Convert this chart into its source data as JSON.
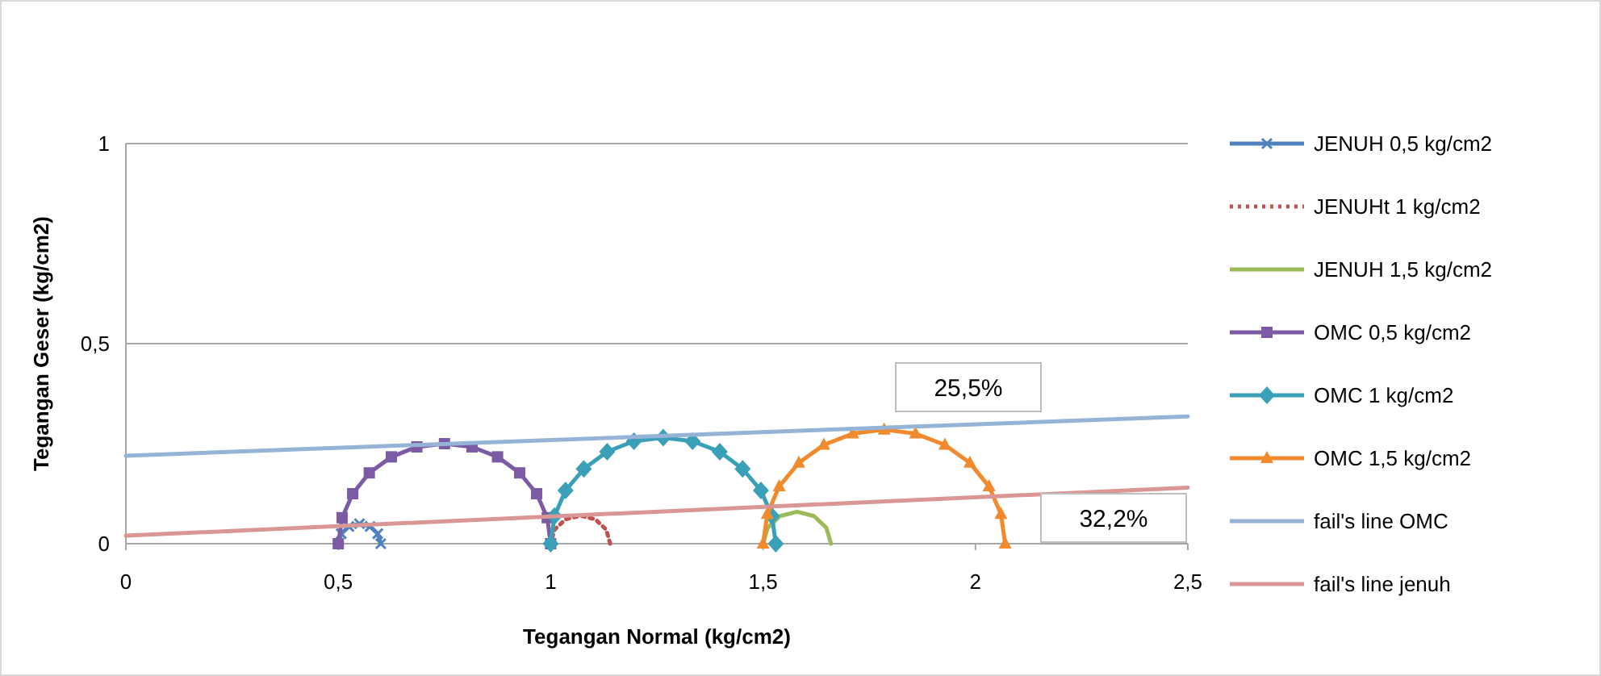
{
  "chart_data": {
    "type": "line",
    "xlabel": "Tegangan Normal (kg/cm2)",
    "ylabel": "Tegangan Geser (kg/cm2)",
    "xlim": [
      0,
      2.5
    ],
    "ylim": [
      0,
      1
    ],
    "xticks": [
      0,
      {
        "value": 0.5,
        "label": "0,5"
      },
      1,
      {
        "value": 1.5,
        "label": "1,5"
      },
      2,
      {
        "value": 2.5,
        "label": "2,5"
      }
    ],
    "yticks": [
      0,
      {
        "value": 0.5,
        "label": "0,5"
      },
      1
    ],
    "grid": "y",
    "legend": "right",
    "series": [
      {
        "name": "JENUH 0,5 kg/cm2",
        "color": "#4f81bd",
        "marker": "cross",
        "line_style": "solid",
        "x": [
          0.6,
          0.593,
          0.575,
          0.55,
          0.525,
          0.507,
          0.5
        ],
        "values": [
          0,
          0.025,
          0.043,
          0.05,
          0.043,
          0.025,
          0
        ]
      },
      {
        "name": "JENUHt 1 kg/cm2",
        "color": "#c0504d",
        "marker": "none",
        "line_style": "dotted",
        "x": [
          1.14,
          1.131,
          1.105,
          1.07,
          1.035,
          1.009,
          1.0
        ],
        "values": [
          0,
          0.035,
          0.061,
          0.07,
          0.061,
          0.035,
          0
        ]
      },
      {
        "name": "JENUH 1,5 kg/cm2",
        "color": "#9bbb59",
        "marker": "none",
        "line_style": "solid",
        "x": [
          1.66,
          1.649,
          1.62,
          1.58,
          1.54,
          1.511,
          1.5
        ],
        "values": [
          0,
          0.04,
          0.069,
          0.08,
          0.069,
          0.04,
          0
        ]
      },
      {
        "name": "OMC 0,5 kg/cm2",
        "color": "#7a5ba4",
        "marker": "square",
        "line_style": "solid",
        "x": [
          1.0,
          0.992,
          0.967,
          0.927,
          0.875,
          0.815,
          0.75,
          0.685,
          0.625,
          0.573,
          0.534,
          0.509,
          0.5
        ],
        "values": [
          0,
          0.065,
          0.125,
          0.177,
          0.217,
          0.242,
          0.25,
          0.242,
          0.217,
          0.177,
          0.125,
          0.065,
          0
        ]
      },
      {
        "name": "OMC 1 kg/cm2",
        "color": "#3aa0b8",
        "marker": "diamond",
        "line_style": "solid",
        "x": [
          1.53,
          1.521,
          1.495,
          1.452,
          1.398,
          1.334,
          1.265,
          1.196,
          1.133,
          1.078,
          1.035,
          1.009,
          1.0
        ],
        "values": [
          0,
          0.069,
          0.133,
          0.187,
          0.23,
          0.256,
          0.265,
          0.256,
          0.23,
          0.187,
          0.133,
          0.069,
          0
        ]
      },
      {
        "name": "OMC 1,5 kg/cm2",
        "color": "#f08a2c",
        "marker": "triangle",
        "line_style": "solid",
        "x": [
          2.07,
          2.06,
          2.032,
          1.987,
          1.928,
          1.859,
          1.785,
          1.711,
          1.643,
          1.584,
          1.538,
          1.51,
          1.5
        ],
        "values": [
          0,
          0.074,
          0.143,
          0.202,
          0.247,
          0.275,
          0.285,
          0.275,
          0.247,
          0.202,
          0.143,
          0.074,
          0
        ]
      },
      {
        "name": "fail's line OMC",
        "color": "#95b3d7",
        "marker": "none",
        "line_style": "solid",
        "x": [
          0,
          2.5
        ],
        "values": [
          0.22,
          0.318
        ]
      },
      {
        "name": "fail's line jenuh",
        "color": "#d99694",
        "marker": "none",
        "line_style": "solid",
        "x": [
          0,
          2.5
        ],
        "values": [
          0.02,
          0.14
        ]
      }
    ],
    "annotations": [
      "25,5%",
      "32,2%"
    ]
  }
}
